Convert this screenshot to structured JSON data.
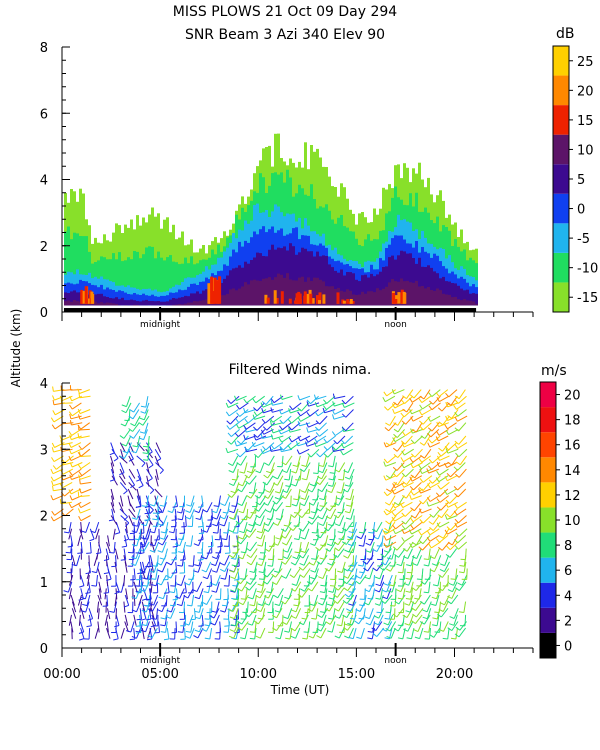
{
  "header": {
    "line1": "MISS PLOWS  21 Oct 09 Day 294",
    "line2": "SNR Beam 3 Azi 340 Elev 90"
  },
  "shared": {
    "ylabel": "Altitude (km)",
    "xlabel": "Time (UT)",
    "x_ticks": [
      "00:00",
      "05:00",
      "10:00",
      "15:00",
      "20:00"
    ],
    "marker_labels": [
      "midnight",
      "noon"
    ]
  },
  "colors": {
    "snr": [
      "#88e02a",
      "#20dd60",
      "#20b4ee",
      "#1040f0",
      "#3c0a90",
      "#5c1468",
      "#ee2200",
      "#ff8800",
      "#ffd000"
    ],
    "wind": [
      "#000000",
      "#3c0a90",
      "#1e28e8",
      "#20b4ee",
      "#20dd78",
      "#88e02a",
      "#ffd000",
      "#ff8800",
      "#ff4400",
      "#ee1111",
      "#ee0044"
    ]
  },
  "chart_data": [
    {
      "type": "heatmap",
      "title": "SNR Beam 3 Azi 340 Elev 90",
      "colorbar_unit": "dB",
      "colorbar_ticks": [
        "-15",
        "-10",
        "-5",
        "0",
        "5",
        "10",
        "15",
        "20",
        "25"
      ],
      "x_range_hours": [
        0,
        24
      ],
      "ylim": [
        0,
        8
      ],
      "y_ticks": [
        "0",
        "2",
        "4",
        "6",
        "8"
      ],
      "x_marker_labels": [
        "midnight",
        "noon"
      ],
      "bands_hours_vs_top_km": [
        {
          "level_db": -15,
          "x": [
            1,
            1.5,
            3,
            4.5,
            7,
            8,
            9,
            10,
            11,
            12,
            13,
            14,
            15,
            16,
            17,
            18,
            19,
            20,
            21
          ],
          "top": [
            3.6,
            2.0,
            2.6,
            3.0,
            1.8,
            2.2,
            3.2,
            4.6,
            5.0,
            4.8,
            4.5,
            3.8,
            2.8,
            3.0,
            4.4,
            4.2,
            3.6,
            2.6,
            1.8
          ]
        },
        {
          "level_db": -5,
          "x": [
            1,
            3,
            5,
            7,
            8,
            9,
            10,
            11,
            12,
            13,
            14,
            15,
            16,
            17,
            18,
            19,
            20,
            21
          ],
          "top": [
            1.2,
            0.8,
            0.6,
            1.2,
            1.6,
            2.6,
            3.2,
            3.0,
            2.8,
            2.4,
            1.8,
            1.4,
            1.6,
            2.8,
            2.4,
            2.0,
            1.4,
            1.0
          ]
        },
        {
          "level_db": 5,
          "x": [
            1,
            3,
            5,
            7,
            8,
            9,
            10,
            11,
            12,
            13,
            14,
            15,
            16,
            17,
            18,
            19,
            20,
            21
          ],
          "top": [
            0.6,
            0.4,
            0.3,
            0.6,
            0.9,
            1.4,
            1.8,
            2.0,
            1.9,
            1.7,
            1.3,
            1.0,
            1.2,
            1.8,
            1.6,
            1.2,
            0.8,
            0.5
          ]
        },
        {
          "level_db": 15,
          "x": [
            1.2,
            7.7,
            11.5,
            13,
            14.5,
            17.1
          ],
          "top": [
            0.8,
            1.1,
            0.7,
            0.6,
            0.4,
            0.7
          ]
        }
      ]
    },
    {
      "type": "scatter",
      "title": "Filtered Winds nima.",
      "colorbar_unit": "m/s",
      "colorbar_ticks": [
        "0",
        "2",
        "4",
        "6",
        "8",
        "10",
        "12",
        "14",
        "16",
        "18",
        "20"
      ],
      "x_range_hours": [
        0,
        24
      ],
      "ylim": [
        0,
        4
      ],
      "y_ticks": [
        "0",
        "1",
        "2",
        "3",
        "4"
      ],
      "x_marker_labels": [
        "midnight",
        "noon"
      ],
      "wind_regions": [
        {
          "hours": [
            0.1,
            1.6
          ],
          "km": [
            2.0,
            4.0
          ],
          "speed_ms": 13,
          "dir_deg": 250
        },
        {
          "hours": [
            0.5,
            5.0
          ],
          "km": [
            0.3,
            2.0
          ],
          "speed_ms": 3,
          "dir_deg": 180
        },
        {
          "hours": [
            2.5,
            5.0
          ],
          "km": [
            2.0,
            3.2
          ],
          "speed_ms": 3,
          "dir_deg": 150
        },
        {
          "hours": [
            3.5,
            4.5
          ],
          "km": [
            3.0,
            3.9
          ],
          "speed_ms": 7,
          "dir_deg": 200
        },
        {
          "hours": [
            4.0,
            9.0
          ],
          "km": [
            0.3,
            2.4
          ],
          "speed_ms": 5,
          "dir_deg": 190
        },
        {
          "hours": [
            9.0,
            15.0
          ],
          "km": [
            0.3,
            3.0
          ],
          "speed_ms": 9,
          "dir_deg": 200
        },
        {
          "hours": [
            9.0,
            15.0
          ],
          "km": [
            3.0,
            3.9
          ],
          "speed_ms": 6,
          "dir_deg": 240
        },
        {
          "hours": [
            15.0,
            17.0
          ],
          "km": [
            0.3,
            2.0
          ],
          "speed_ms": 6,
          "dir_deg": 200
        },
        {
          "hours": [
            17.0,
            21.0
          ],
          "km": [
            0.3,
            1.6
          ],
          "speed_ms": 9,
          "dir_deg": 200
        },
        {
          "hours": [
            17.0,
            21.0
          ],
          "km": [
            1.6,
            4.0
          ],
          "speed_ms": 12,
          "dir_deg": 230
        }
      ]
    }
  ]
}
